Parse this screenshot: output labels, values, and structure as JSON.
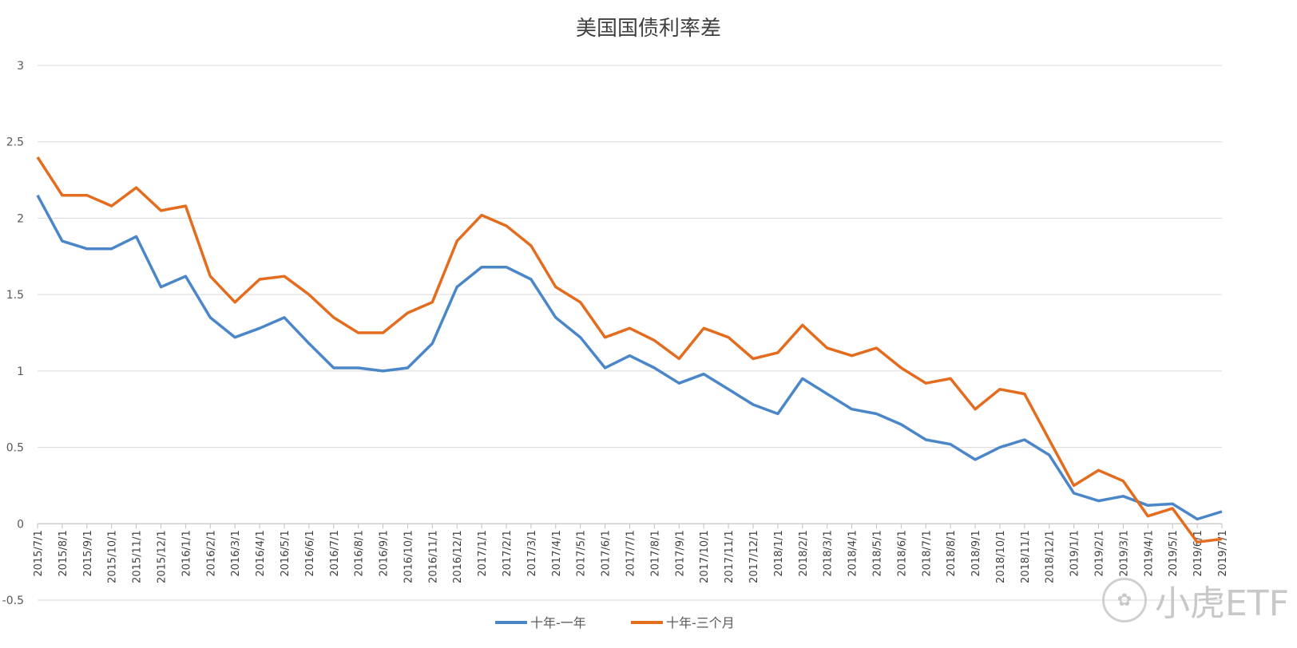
{
  "chart_data": {
    "type": "line",
    "title": "美国国债利率差",
    "ylim": [
      -0.5,
      3
    ],
    "y_ticks": [
      "3",
      "2.5",
      "2",
      "1.5",
      "1",
      "0.5",
      "0",
      "-0.5"
    ],
    "grid": true,
    "legend_position": "bottom",
    "categories": [
      "2015/7/1",
      "2015/8/1",
      "2015/9/1",
      "2015/10/1",
      "2015/11/1",
      "2015/12/1",
      "2016/1/1",
      "2016/2/1",
      "2016/3/1",
      "2016/4/1",
      "2016/5/1",
      "2016/6/1",
      "2016/7/1",
      "2016/8/1",
      "2016/9/1",
      "2016/10/1",
      "2016/11/1",
      "2016/12/1",
      "2017/1/1",
      "2017/2/1",
      "2017/3/1",
      "2017/4/1",
      "2017/5/1",
      "2017/6/1",
      "2017/7/1",
      "2017/8/1",
      "2017/9/1",
      "2017/10/1",
      "2017/11/1",
      "2017/12/1",
      "2018/1/1",
      "2018/2/1",
      "2018/3/1",
      "2018/4/1",
      "2018/5/1",
      "2018/6/1",
      "2018/7/1",
      "2018/8/1",
      "2018/9/1",
      "2018/10/1",
      "2018/11/1",
      "2018/12/1",
      "2019/1/1",
      "2019/2/1",
      "2019/3/1",
      "2019/4/1",
      "2019/5/1",
      "2019/6/1",
      "2019/7/1"
    ],
    "series": [
      {
        "name": "十年-一年",
        "color": "#4a86c8",
        "values": [
          2.15,
          1.85,
          1.8,
          1.8,
          1.88,
          1.55,
          1.62,
          1.35,
          1.22,
          1.28,
          1.35,
          1.18,
          1.02,
          1.02,
          1.0,
          1.02,
          1.18,
          1.55,
          1.68,
          1.68,
          1.6,
          1.35,
          1.22,
          1.02,
          1.1,
          1.02,
          0.92,
          0.98,
          0.88,
          0.78,
          0.72,
          0.95,
          0.85,
          0.75,
          0.72,
          0.65,
          0.55,
          0.52,
          0.42,
          0.5,
          0.55,
          0.45,
          0.2,
          0.15,
          0.18,
          0.12,
          0.13,
          0.03,
          0.08
        ]
      },
      {
        "name": "十年-三个月",
        "color": "#e36c1e",
        "values": [
          2.4,
          2.15,
          2.15,
          2.08,
          2.2,
          2.05,
          2.08,
          1.62,
          1.45,
          1.6,
          1.62,
          1.5,
          1.35,
          1.25,
          1.25,
          1.38,
          1.45,
          1.85,
          2.02,
          1.95,
          1.82,
          1.55,
          1.45,
          1.22,
          1.28,
          1.2,
          1.08,
          1.28,
          1.22,
          1.08,
          1.12,
          1.3,
          1.15,
          1.1,
          1.15,
          1.02,
          0.92,
          0.95,
          0.75,
          0.88,
          0.85,
          0.55,
          0.25,
          0.35,
          0.28,
          0.05,
          0.1,
          -0.12,
          -0.1
        ]
      }
    ]
  },
  "watermark": {
    "text": "小虎ETF",
    "icon": "tiger-logo-icon"
  }
}
